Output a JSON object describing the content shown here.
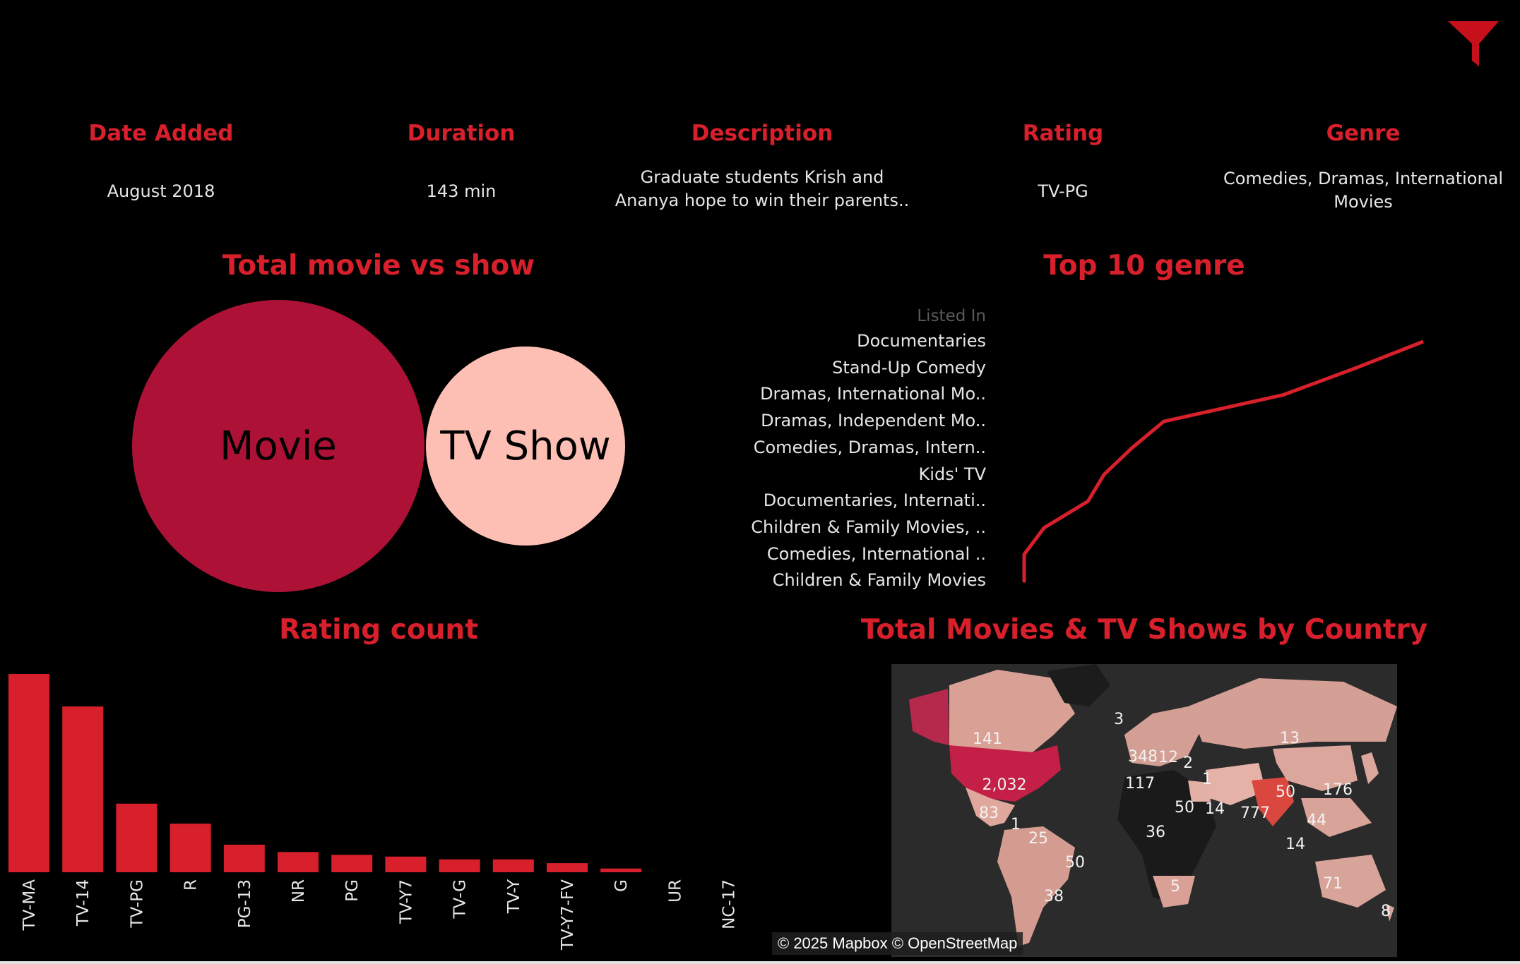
{
  "colors": {
    "accent": "#d7202b",
    "movie": "#ad1236",
    "tvshow": "#fdbfb3",
    "bar": "#d7202b",
    "map_land": "#1c1c1c",
    "map_water": "#2b2b2b"
  },
  "filter_icon": "filter-funnel-icon",
  "kpis": [
    {
      "title": "Date Added",
      "value": "August 2018"
    },
    {
      "title": "Duration",
      "value": "143 min"
    },
    {
      "title": "Description",
      "value": "Graduate students Krish and\nAnanya hope to win their parents.."
    },
    {
      "title": "Rating",
      "value": "TV-PG"
    },
    {
      "title": "Genre",
      "value": "Comedies, Dramas, International\nMovies"
    }
  ],
  "movie_vs_show": {
    "title": "Total movie vs show",
    "chart_data": {
      "type": "bubble",
      "categories": [
        "Movie",
        "TV Show"
      ],
      "relative_size": [
        1.0,
        0.46
      ]
    }
  },
  "top_genre": {
    "title": "Top 10 genre",
    "header": "Listed In",
    "chart_data": {
      "type": "line",
      "categories": [
        "Documentaries",
        "Stand-Up Comedy",
        "Dramas, International Mo..",
        "Dramas, Independent Mo..",
        "Comedies, Dramas, Intern..",
        "Kids' TV",
        "Documentaries, Internati..",
        "Children & Family Movies, ..",
        "Comedies, International ..",
        "Children & Family Movies"
      ],
      "values": [
        1.0,
        0.83,
        0.65,
        0.35,
        0.27,
        0.2,
        0.16,
        0.05,
        0.0,
        0.0
      ],
      "value_note": "relative length (no axis shown)"
    }
  },
  "rating_count": {
    "title": "Rating count",
    "chart_data": {
      "type": "bar",
      "categories": [
        "TV-MA",
        "TV-14",
        "TV-PG",
        "R",
        "PG-13",
        "NR",
        "PG",
        "TV-Y7",
        "TV-G",
        "TV-Y",
        "TV-Y7-FV",
        "G",
        "UR",
        "NC-17"
      ],
      "values": [
        1.0,
        0.836,
        0.346,
        0.245,
        0.139,
        0.102,
        0.088,
        0.079,
        0.065,
        0.065,
        0.046,
        0.019,
        0.0,
        0.0
      ],
      "value_note": "relative to tallest bar (no axis shown)"
    }
  },
  "country_map": {
    "title": "Total Movies & TV Shows by Country",
    "attribution": "© 2025 Mapbox © OpenStreetMap",
    "labels": [
      {
        "text": "141",
        "country": "Canada"
      },
      {
        "text": "2,032",
        "country": "United States"
      },
      {
        "text": "83",
        "country": "Mexico"
      },
      {
        "text": "1",
        "country": "Guatemala"
      },
      {
        "text": "25",
        "country": "Colombia"
      },
      {
        "text": "50",
        "country": "Brazil"
      },
      {
        "text": "38",
        "country": "Argentina"
      },
      {
        "text": "3",
        "country": "Iceland"
      },
      {
        "text": "348",
        "country": "United Kingdom"
      },
      {
        "text": "12",
        "country": "Netherlands"
      },
      {
        "text": "2",
        "country": "Poland"
      },
      {
        "text": "117",
        "country": "Spain"
      },
      {
        "text": "1",
        "country": "Turkey"
      },
      {
        "text": "50",
        "country": "Egypt"
      },
      {
        "text": "14",
        "country": "Saudi Arabia"
      },
      {
        "text": "777",
        "country": "India"
      },
      {
        "text": "36",
        "country": "Nigeria"
      },
      {
        "text": "5",
        "country": "South Africa"
      },
      {
        "text": "13",
        "country": "Russia"
      },
      {
        "text": "50",
        "country": "China"
      },
      {
        "text": "176",
        "country": "Japan"
      },
      {
        "text": "44",
        "country": "Philippines"
      },
      {
        "text": "14",
        "country": "Indonesia"
      },
      {
        "text": "71",
        "country": "Australia"
      },
      {
        "text": "8",
        "country": "New Zealand"
      }
    ]
  }
}
